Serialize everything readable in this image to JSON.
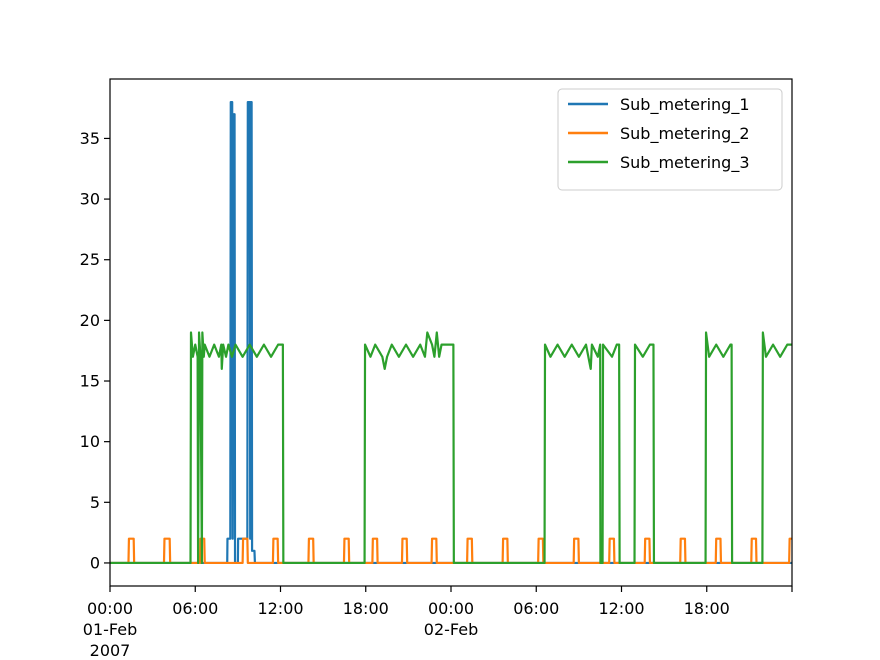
{
  "chart_data": {
    "type": "line",
    "title": "",
    "xlabel": "",
    "ylabel": "",
    "xlim": [
      "2007-02-01 00:00",
      "2007-02-03 00:00"
    ],
    "ylim": [
      -1.9,
      39.9
    ],
    "grid": false,
    "legend_position": "top-right",
    "x_ticks": [
      {
        "value": "2007-02-01 00:00",
        "lines": [
          "00:00",
          "01-Feb",
          "2007"
        ]
      },
      {
        "value": "2007-02-01 06:00",
        "lines": [
          "06:00"
        ]
      },
      {
        "value": "2007-02-01 12:00",
        "lines": [
          "12:00"
        ]
      },
      {
        "value": "2007-02-01 18:00",
        "lines": [
          "18:00"
        ]
      },
      {
        "value": "2007-02-02 00:00",
        "lines": [
          "00:00",
          "02-Feb"
        ]
      },
      {
        "value": "2007-02-02 06:00",
        "lines": [
          "06:00"
        ]
      },
      {
        "value": "2007-02-02 12:00",
        "lines": [
          "12:00"
        ]
      },
      {
        "value": "2007-02-02 18:00",
        "lines": [
          "18:00"
        ]
      },
      {
        "value": "2007-02-03 00:00",
        "lines": [
          ""
        ]
      }
    ],
    "y_ticks": [
      0,
      5,
      10,
      15,
      20,
      25,
      30,
      35
    ],
    "series": [
      {
        "name": "Sub_metering_1",
        "color": "#1f77b4",
        "points": [
          [
            "2007-02-01 00:00",
            0
          ],
          [
            "2007-02-01 08:15",
            0
          ],
          [
            "2007-02-01 08:16",
            2
          ],
          [
            "2007-02-01 08:28",
            2
          ],
          [
            "2007-02-01 08:30",
            38
          ],
          [
            "2007-02-01 08:36",
            38
          ],
          [
            "2007-02-01 08:38",
            2
          ],
          [
            "2007-02-01 08:42",
            37
          ],
          [
            "2007-02-01 08:46",
            37
          ],
          [
            "2007-02-01 08:48",
            0
          ],
          [
            "2007-02-01 09:00",
            0
          ],
          [
            "2007-02-01 09:01",
            2
          ],
          [
            "2007-02-01 09:40",
            2
          ],
          [
            "2007-02-01 09:42",
            38
          ],
          [
            "2007-02-01 09:50",
            38
          ],
          [
            "2007-02-01 09:52",
            2
          ],
          [
            "2007-02-01 09:54",
            38
          ],
          [
            "2007-02-01 09:58",
            38
          ],
          [
            "2007-02-01 10:00",
            1
          ],
          [
            "2007-02-01 10:10",
            1
          ],
          [
            "2007-02-01 10:12",
            0
          ],
          [
            "2007-02-03 00:00",
            0
          ]
        ]
      },
      {
        "name": "Sub_metering_2",
        "color": "#ff7f0e",
        "points": [
          [
            "2007-02-01 00:00",
            0
          ],
          [
            "2007-02-01 01:18",
            0
          ],
          [
            "2007-02-01 01:20",
            2
          ],
          [
            "2007-02-01 01:40",
            2
          ],
          [
            "2007-02-01 01:42",
            0
          ],
          [
            "2007-02-01 03:48",
            0
          ],
          [
            "2007-02-01 03:50",
            2
          ],
          [
            "2007-02-01 04:12",
            2
          ],
          [
            "2007-02-01 04:14",
            0
          ],
          [
            "2007-02-01 06:20",
            0
          ],
          [
            "2007-02-01 06:22",
            2
          ],
          [
            "2007-02-01 06:38",
            2
          ],
          [
            "2007-02-01 06:40",
            0
          ],
          [
            "2007-02-01 09:20",
            0
          ],
          [
            "2007-02-01 09:22",
            2
          ],
          [
            "2007-02-01 09:40",
            2
          ],
          [
            "2007-02-01 09:42",
            0
          ],
          [
            "2007-02-01 11:28",
            0
          ],
          [
            "2007-02-01 11:30",
            2
          ],
          [
            "2007-02-01 11:48",
            2
          ],
          [
            "2007-02-01 11:50",
            0
          ],
          [
            "2007-02-01 13:58",
            0
          ],
          [
            "2007-02-01 14:00",
            2
          ],
          [
            "2007-02-01 14:18",
            2
          ],
          [
            "2007-02-01 14:20",
            0
          ],
          [
            "2007-02-01 16:28",
            0
          ],
          [
            "2007-02-01 16:30",
            2
          ],
          [
            "2007-02-01 16:48",
            2
          ],
          [
            "2007-02-01 16:50",
            0
          ],
          [
            "2007-02-01 18:28",
            0
          ],
          [
            "2007-02-01 18:30",
            2
          ],
          [
            "2007-02-01 18:48",
            2
          ],
          [
            "2007-02-01 18:50",
            0
          ],
          [
            "2007-02-01 20:33",
            0
          ],
          [
            "2007-02-01 20:35",
            2
          ],
          [
            "2007-02-01 20:53",
            2
          ],
          [
            "2007-02-01 20:55",
            0
          ],
          [
            "2007-02-01 22:38",
            0
          ],
          [
            "2007-02-01 22:40",
            2
          ],
          [
            "2007-02-01 22:58",
            2
          ],
          [
            "2007-02-01 23:00",
            0
          ],
          [
            "2007-02-02 01:08",
            0
          ],
          [
            "2007-02-02 01:10",
            2
          ],
          [
            "2007-02-02 01:28",
            2
          ],
          [
            "2007-02-02 01:30",
            0
          ],
          [
            "2007-02-02 03:38",
            0
          ],
          [
            "2007-02-02 03:40",
            2
          ],
          [
            "2007-02-02 03:58",
            2
          ],
          [
            "2007-02-02 04:00",
            0
          ],
          [
            "2007-02-02 06:08",
            0
          ],
          [
            "2007-02-02 06:10",
            2
          ],
          [
            "2007-02-02 06:28",
            2
          ],
          [
            "2007-02-02 06:30",
            0
          ],
          [
            "2007-02-02 08:38",
            0
          ],
          [
            "2007-02-02 08:40",
            2
          ],
          [
            "2007-02-02 08:58",
            2
          ],
          [
            "2007-02-02 09:00",
            0
          ],
          [
            "2007-02-02 11:08",
            0
          ],
          [
            "2007-02-02 11:10",
            2
          ],
          [
            "2007-02-02 11:28",
            2
          ],
          [
            "2007-02-02 11:30",
            0
          ],
          [
            "2007-02-02 13:38",
            0
          ],
          [
            "2007-02-02 13:40",
            2
          ],
          [
            "2007-02-02 13:58",
            2
          ],
          [
            "2007-02-02 14:00",
            0
          ],
          [
            "2007-02-02 16:08",
            0
          ],
          [
            "2007-02-02 16:10",
            2
          ],
          [
            "2007-02-02 16:28",
            2
          ],
          [
            "2007-02-02 16:30",
            0
          ],
          [
            "2007-02-02 18:38",
            0
          ],
          [
            "2007-02-02 18:40",
            2
          ],
          [
            "2007-02-02 18:58",
            2
          ],
          [
            "2007-02-02 19:00",
            0
          ],
          [
            "2007-02-02 21:08",
            0
          ],
          [
            "2007-02-02 21:10",
            2
          ],
          [
            "2007-02-02 21:28",
            2
          ],
          [
            "2007-02-02 21:30",
            0
          ],
          [
            "2007-02-02 23:48",
            0
          ],
          [
            "2007-02-02 23:50",
            2
          ],
          [
            "2007-02-03 00:00",
            2
          ]
        ]
      },
      {
        "name": "Sub_metering_3",
        "color": "#2ca02c",
        "points": [
          [
            "2007-02-01 00:00",
            0
          ],
          [
            "2007-02-01 05:40",
            0
          ],
          [
            "2007-02-01 05:42",
            19
          ],
          [
            "2007-02-01 05:50",
            17
          ],
          [
            "2007-02-01 06:00",
            18
          ],
          [
            "2007-02-01 06:10",
            17
          ],
          [
            "2007-02-01 06:12",
            0
          ],
          [
            "2007-02-01 06:16",
            19
          ],
          [
            "2007-02-01 06:22",
            17
          ],
          [
            "2007-02-01 06:28",
            0
          ],
          [
            "2007-02-01 06:30",
            19
          ],
          [
            "2007-02-01 06:36",
            17
          ],
          [
            "2007-02-01 06:40",
            18
          ],
          [
            "2007-02-01 07:00",
            17
          ],
          [
            "2007-02-01 07:20",
            18
          ],
          [
            "2007-02-01 07:40",
            17
          ],
          [
            "2007-02-01 07:50",
            18
          ],
          [
            "2007-02-01 07:52",
            16
          ],
          [
            "2007-02-01 07:58",
            18
          ],
          [
            "2007-02-01 08:10",
            17
          ],
          [
            "2007-02-01 08:20",
            18
          ],
          [
            "2007-02-01 08:35",
            17
          ],
          [
            "2007-02-01 08:50",
            18
          ],
          [
            "2007-02-01 09:20",
            17
          ],
          [
            "2007-02-01 09:50",
            18
          ],
          [
            "2007-02-01 10:20",
            17
          ],
          [
            "2007-02-01 10:50",
            18
          ],
          [
            "2007-02-01 11:20",
            17
          ],
          [
            "2007-02-01 11:50",
            18
          ],
          [
            "2007-02-01 12:10",
            18
          ],
          [
            "2007-02-01 12:12",
            0
          ],
          [
            "2007-02-01 17:55",
            0
          ],
          [
            "2007-02-01 17:57",
            18
          ],
          [
            "2007-02-01 18:20",
            17
          ],
          [
            "2007-02-01 18:40",
            18
          ],
          [
            "2007-02-01 19:10",
            17
          ],
          [
            "2007-02-01 19:20",
            16
          ],
          [
            "2007-02-01 19:30",
            17
          ],
          [
            "2007-02-01 19:50",
            18
          ],
          [
            "2007-02-01 20:20",
            17
          ],
          [
            "2007-02-01 20:50",
            18
          ],
          [
            "2007-02-01 21:20",
            17
          ],
          [
            "2007-02-01 21:50",
            18
          ],
          [
            "2007-02-01 22:10",
            17
          ],
          [
            "2007-02-01 22:20",
            19
          ],
          [
            "2007-02-01 22:40",
            18
          ],
          [
            "2007-02-01 22:50",
            17
          ],
          [
            "2007-02-01 23:00",
            19
          ],
          [
            "2007-02-01 23:10",
            17
          ],
          [
            "2007-02-01 23:20",
            18
          ],
          [
            "2007-02-02 00:10",
            18
          ],
          [
            "2007-02-02 00:12",
            0
          ],
          [
            "2007-02-02 06:35",
            0
          ],
          [
            "2007-02-02 06:37",
            18
          ],
          [
            "2007-02-02 07:00",
            17
          ],
          [
            "2007-02-02 07:30",
            18
          ],
          [
            "2007-02-02 08:00",
            17
          ],
          [
            "2007-02-02 08:30",
            18
          ],
          [
            "2007-02-02 09:00",
            17
          ],
          [
            "2007-02-02 09:30",
            18
          ],
          [
            "2007-02-02 09:50",
            16
          ],
          [
            "2007-02-02 09:55",
            18
          ],
          [
            "2007-02-02 10:20",
            17
          ],
          [
            "2007-02-02 10:30",
            18
          ],
          [
            "2007-02-02 10:31",
            0
          ],
          [
            "2007-02-02 10:40",
            0
          ],
          [
            "2007-02-02 10:42",
            18
          ],
          [
            "2007-02-02 11:20",
            17
          ],
          [
            "2007-02-02 11:40",
            18
          ],
          [
            "2007-02-02 11:50",
            18
          ],
          [
            "2007-02-02 11:52",
            0
          ],
          [
            "2007-02-02 12:55",
            0
          ],
          [
            "2007-02-02 12:57",
            18
          ],
          [
            "2007-02-02 13:30",
            17
          ],
          [
            "2007-02-02 14:00",
            18
          ],
          [
            "2007-02-02 14:15",
            18
          ],
          [
            "2007-02-02 14:17",
            0
          ],
          [
            "2007-02-02 17:55",
            0
          ],
          [
            "2007-02-02 17:57",
            19
          ],
          [
            "2007-02-02 18:10",
            17
          ],
          [
            "2007-02-02 18:40",
            18
          ],
          [
            "2007-02-02 19:10",
            17
          ],
          [
            "2007-02-02 19:40",
            18
          ],
          [
            "2007-02-02 19:45",
            18
          ],
          [
            "2007-02-02 19:47",
            0
          ],
          [
            "2007-02-02 21:55",
            0
          ],
          [
            "2007-02-02 21:57",
            19
          ],
          [
            "2007-02-02 22:10",
            17
          ],
          [
            "2007-02-02 22:40",
            18
          ],
          [
            "2007-02-02 23:10",
            17
          ],
          [
            "2007-02-02 23:40",
            18
          ],
          [
            "2007-02-03 00:00",
            18
          ]
        ]
      }
    ]
  }
}
